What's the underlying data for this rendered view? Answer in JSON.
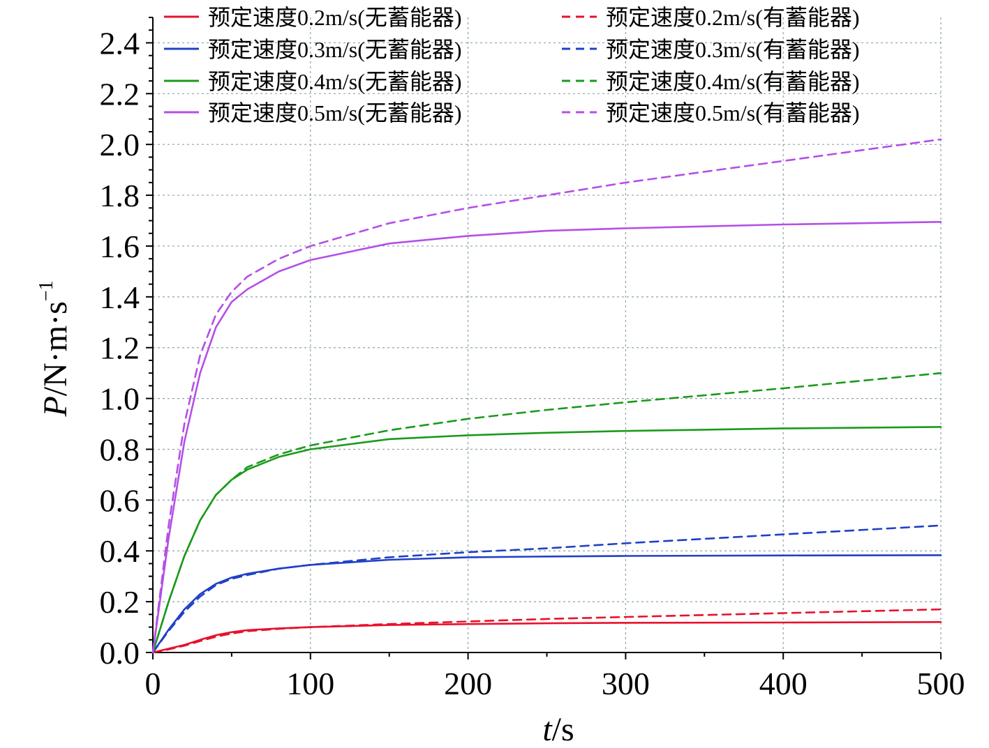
{
  "chart_data": {
    "type": "line",
    "title": "",
    "xlabel_italic": "t",
    "xlabel_unit": "/s",
    "ylabel_italic": "P",
    "ylabel_unit": "/N·m·s",
    "ylabel_exp": "−1",
    "xlim": [
      0,
      500
    ],
    "ylim": [
      0,
      2.5
    ],
    "x_ticks": [
      0,
      100,
      200,
      300,
      400,
      500
    ],
    "x_tick_labels": [
      "0",
      "100",
      "200",
      "300",
      "400",
      "500"
    ],
    "y_ticks": [
      0.0,
      0.2,
      0.4,
      0.6,
      0.8,
      1.0,
      1.2,
      1.4,
      1.6,
      1.8,
      2.0,
      2.2,
      2.4
    ],
    "y_tick_labels": [
      "0.0",
      "0.2",
      "0.4",
      "0.6",
      "0.8",
      "1.0",
      "1.2",
      "1.4",
      "1.6",
      "1.8",
      "2.0",
      "2.2",
      "2.4"
    ],
    "grid": true,
    "legend_position": "top",
    "legend_columns": 2,
    "x": [
      0,
      10,
      20,
      30,
      40,
      50,
      60,
      80,
      100,
      150,
      200,
      250,
      300,
      400,
      500
    ],
    "series": [
      {
        "name": "预定速度0.2m/s(无蓄能器)",
        "color": "#e8112d",
        "dash": false,
        "values": [
          0,
          0.015,
          0.03,
          0.05,
          0.068,
          0.08,
          0.088,
          0.095,
          0.1,
          0.108,
          0.112,
          0.115,
          0.117,
          0.118,
          0.12
        ]
      },
      {
        "name": "预定速度0.3m/s(无蓄能器)",
        "color": "#2040c8",
        "dash": false,
        "values": [
          0,
          0.09,
          0.17,
          0.23,
          0.27,
          0.295,
          0.31,
          0.33,
          0.345,
          0.365,
          0.375,
          0.378,
          0.38,
          0.382,
          0.383
        ]
      },
      {
        "name": "预定速度0.4m/s(无蓄能器)",
        "color": "#1a9a1a",
        "dash": false,
        "values": [
          0,
          0.2,
          0.38,
          0.52,
          0.62,
          0.68,
          0.72,
          0.77,
          0.8,
          0.84,
          0.855,
          0.865,
          0.872,
          0.882,
          0.888
        ]
      },
      {
        "name": "预定速度0.5m/s(无蓄能器)",
        "color": "#b44fe6",
        "dash": false,
        "values": [
          0,
          0.45,
          0.83,
          1.1,
          1.28,
          1.38,
          1.43,
          1.5,
          1.545,
          1.61,
          1.64,
          1.66,
          1.67,
          1.685,
          1.695
        ]
      },
      {
        "name": "预定速度0.2m/s(有蓄能器)",
        "color": "#e8112d",
        "dash": true,
        "values": [
          0,
          0.012,
          0.027,
          0.045,
          0.062,
          0.075,
          0.084,
          0.093,
          0.1,
          0.112,
          0.122,
          0.132,
          0.14,
          0.155,
          0.17
        ]
      },
      {
        "name": "预定速度0.3m/s(有蓄能器)",
        "color": "#2040c8",
        "dash": true,
        "values": [
          0,
          0.085,
          0.16,
          0.22,
          0.265,
          0.29,
          0.305,
          0.33,
          0.345,
          0.375,
          0.395,
          0.41,
          0.43,
          0.465,
          0.5
        ]
      },
      {
        "name": "预定速度0.4m/s(有蓄能器)",
        "color": "#1a9a1a",
        "dash": true,
        "values": [
          0,
          0.2,
          0.38,
          0.52,
          0.62,
          0.68,
          0.73,
          0.78,
          0.815,
          0.875,
          0.92,
          0.955,
          0.985,
          1.04,
          1.1
        ]
      },
      {
        "name": "预定速度0.5m/s(有蓄能器)",
        "color": "#b44fe6",
        "dash": true,
        "values": [
          0,
          0.5,
          0.9,
          1.17,
          1.33,
          1.42,
          1.48,
          1.55,
          1.6,
          1.69,
          1.75,
          1.8,
          1.85,
          1.935,
          2.02
        ]
      }
    ]
  }
}
